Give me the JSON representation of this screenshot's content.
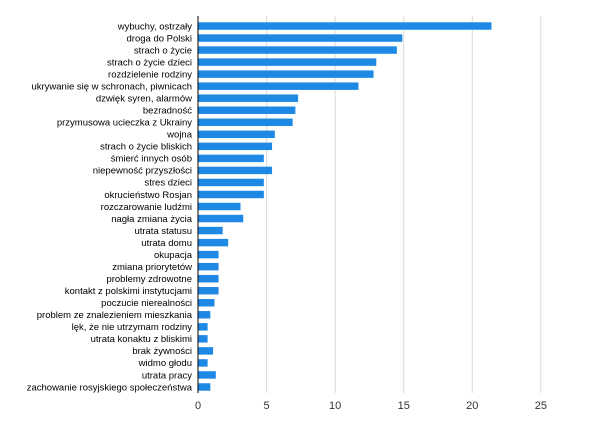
{
  "chart_data": {
    "type": "bar",
    "orientation": "horizontal",
    "bar_color": "#1e88e5",
    "xlim": [
      0,
      28
    ],
    "xticks": [
      "0",
      "5",
      "10",
      "15",
      "20",
      "25"
    ],
    "grid": "vertical",
    "categories": [
      "wybuchy, ostrzały",
      "droga do Polski",
      "strach o życie",
      "strach o życie dzieci",
      "rozdzielenie rodziny",
      "ukrywanie się w schronach, piwnicach",
      "dzwięk syren, alarmów",
      "bezradność",
      "przymusowa ucieczka z Ukrainy",
      "wojna",
      "strach o życie bliskich",
      "śmierć innych osób",
      "niepewność przyszłości",
      "stres dzieci",
      "okrucieństwo Rosjan",
      "rozczarowanie ludźmi",
      "nagła zmiana życia",
      "utrata statusu",
      "utrata domu",
      "okupacja",
      "zmiana priorytetów",
      "problemy zdrowotne",
      "kontakt z polskimi instytucjami",
      "poczucie nierealności",
      "problem ze znalezieniem mieszkania",
      "lęk, że nie utrzymam rodziny",
      "utrata konaktu z bliskimi",
      "brak żywności",
      "widmo głodu",
      "utrata pracy",
      "zachowanie rosyjskiego społeczeństwa"
    ],
    "values": [
      21.4,
      14.9,
      14.5,
      13.0,
      12.8,
      11.7,
      7.3,
      7.1,
      6.9,
      5.6,
      5.4,
      4.8,
      5.4,
      4.8,
      4.8,
      3.1,
      3.3,
      1.8,
      2.2,
      1.5,
      1.5,
      1.5,
      1.5,
      1.2,
      0.9,
      0.7,
      0.7,
      1.1,
      0.7,
      1.3,
      0.9
    ]
  }
}
